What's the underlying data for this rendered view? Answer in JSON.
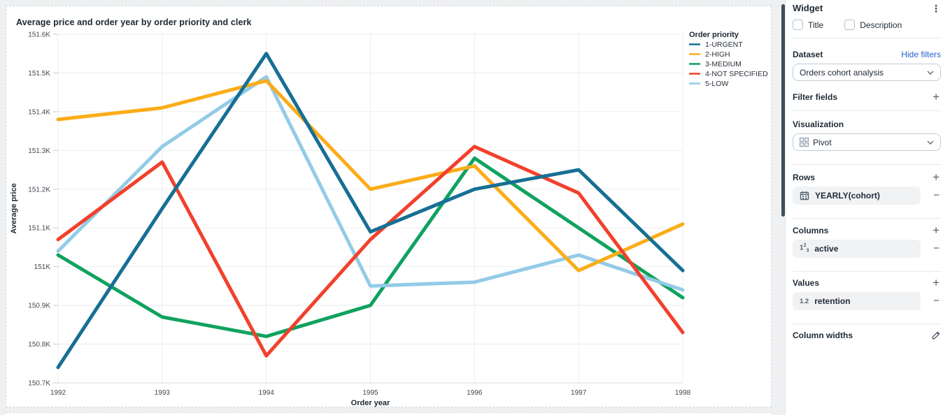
{
  "chart_data": {
    "type": "line",
    "title": "Average price and order year by order priority and clerk",
    "xlabel": "Order year",
    "ylabel": "Average price",
    "x": [
      1992,
      1993,
      1994,
      1995,
      1996,
      1997,
      1998
    ],
    "ylim": [
      150700,
      151600
    ],
    "ytick_step": 100,
    "ytick_labels": [
      "150.7K",
      "150.8K",
      "150.9K",
      "151K",
      "151.1K",
      "151.2K",
      "151.3K",
      "151.4K",
      "151.5K",
      "151.6K"
    ],
    "grid": true,
    "legend_position": "right",
    "legend_title": "Order priority",
    "series": [
      {
        "name": "1-URGENT",
        "color": "#176f94",
        "values": [
          150740,
          151150,
          151550,
          151090,
          151200,
          151250,
          150990
        ]
      },
      {
        "name": "2-HIGH",
        "color": "#fbac18",
        "values": [
          151380,
          151410,
          151480,
          151200,
          151260,
          150990,
          151110
        ]
      },
      {
        "name": "3-MEDIUM",
        "color": "#0fa25f",
        "values": [
          151030,
          150870,
          150820,
          150900,
          151280,
          151100,
          150920
        ]
      },
      {
        "name": "4-NOT SPECIFIED",
        "color": "#f2402c",
        "values": [
          151070,
          151270,
          150770,
          151070,
          151310,
          151190,
          150830
        ]
      },
      {
        "name": "5-LOW",
        "color": "#93cbe7",
        "values": [
          151040,
          151310,
          151490,
          150950,
          150960,
          151030,
          150940
        ]
      }
    ]
  },
  "panel": {
    "title": "Widget",
    "checkboxes": [
      {
        "label": "Title",
        "checked": false
      },
      {
        "label": "Description",
        "checked": false
      }
    ],
    "dataset": {
      "label": "Dataset",
      "link": "Hide filters",
      "selected": "Orders cohort analysis"
    },
    "filter_fields": {
      "label": "Filter fields"
    },
    "visualization": {
      "label": "Visualization",
      "selected": "Pivot"
    },
    "rows": {
      "label": "Rows",
      "items": [
        {
          "label": "YEARLY(cohort)",
          "icon": "calendar-icon"
        }
      ]
    },
    "columns": {
      "label": "Columns",
      "items": [
        {
          "label": "active",
          "icon": "number-field-icon"
        }
      ]
    },
    "values": {
      "label": "Values",
      "items": [
        {
          "label": "retention",
          "icon": "decimal-field-icon"
        }
      ]
    },
    "column_widths": {
      "label": "Column widths"
    }
  },
  "colors": {
    "link": "#2264cc",
    "accent_bar": "#3e4e5c"
  }
}
